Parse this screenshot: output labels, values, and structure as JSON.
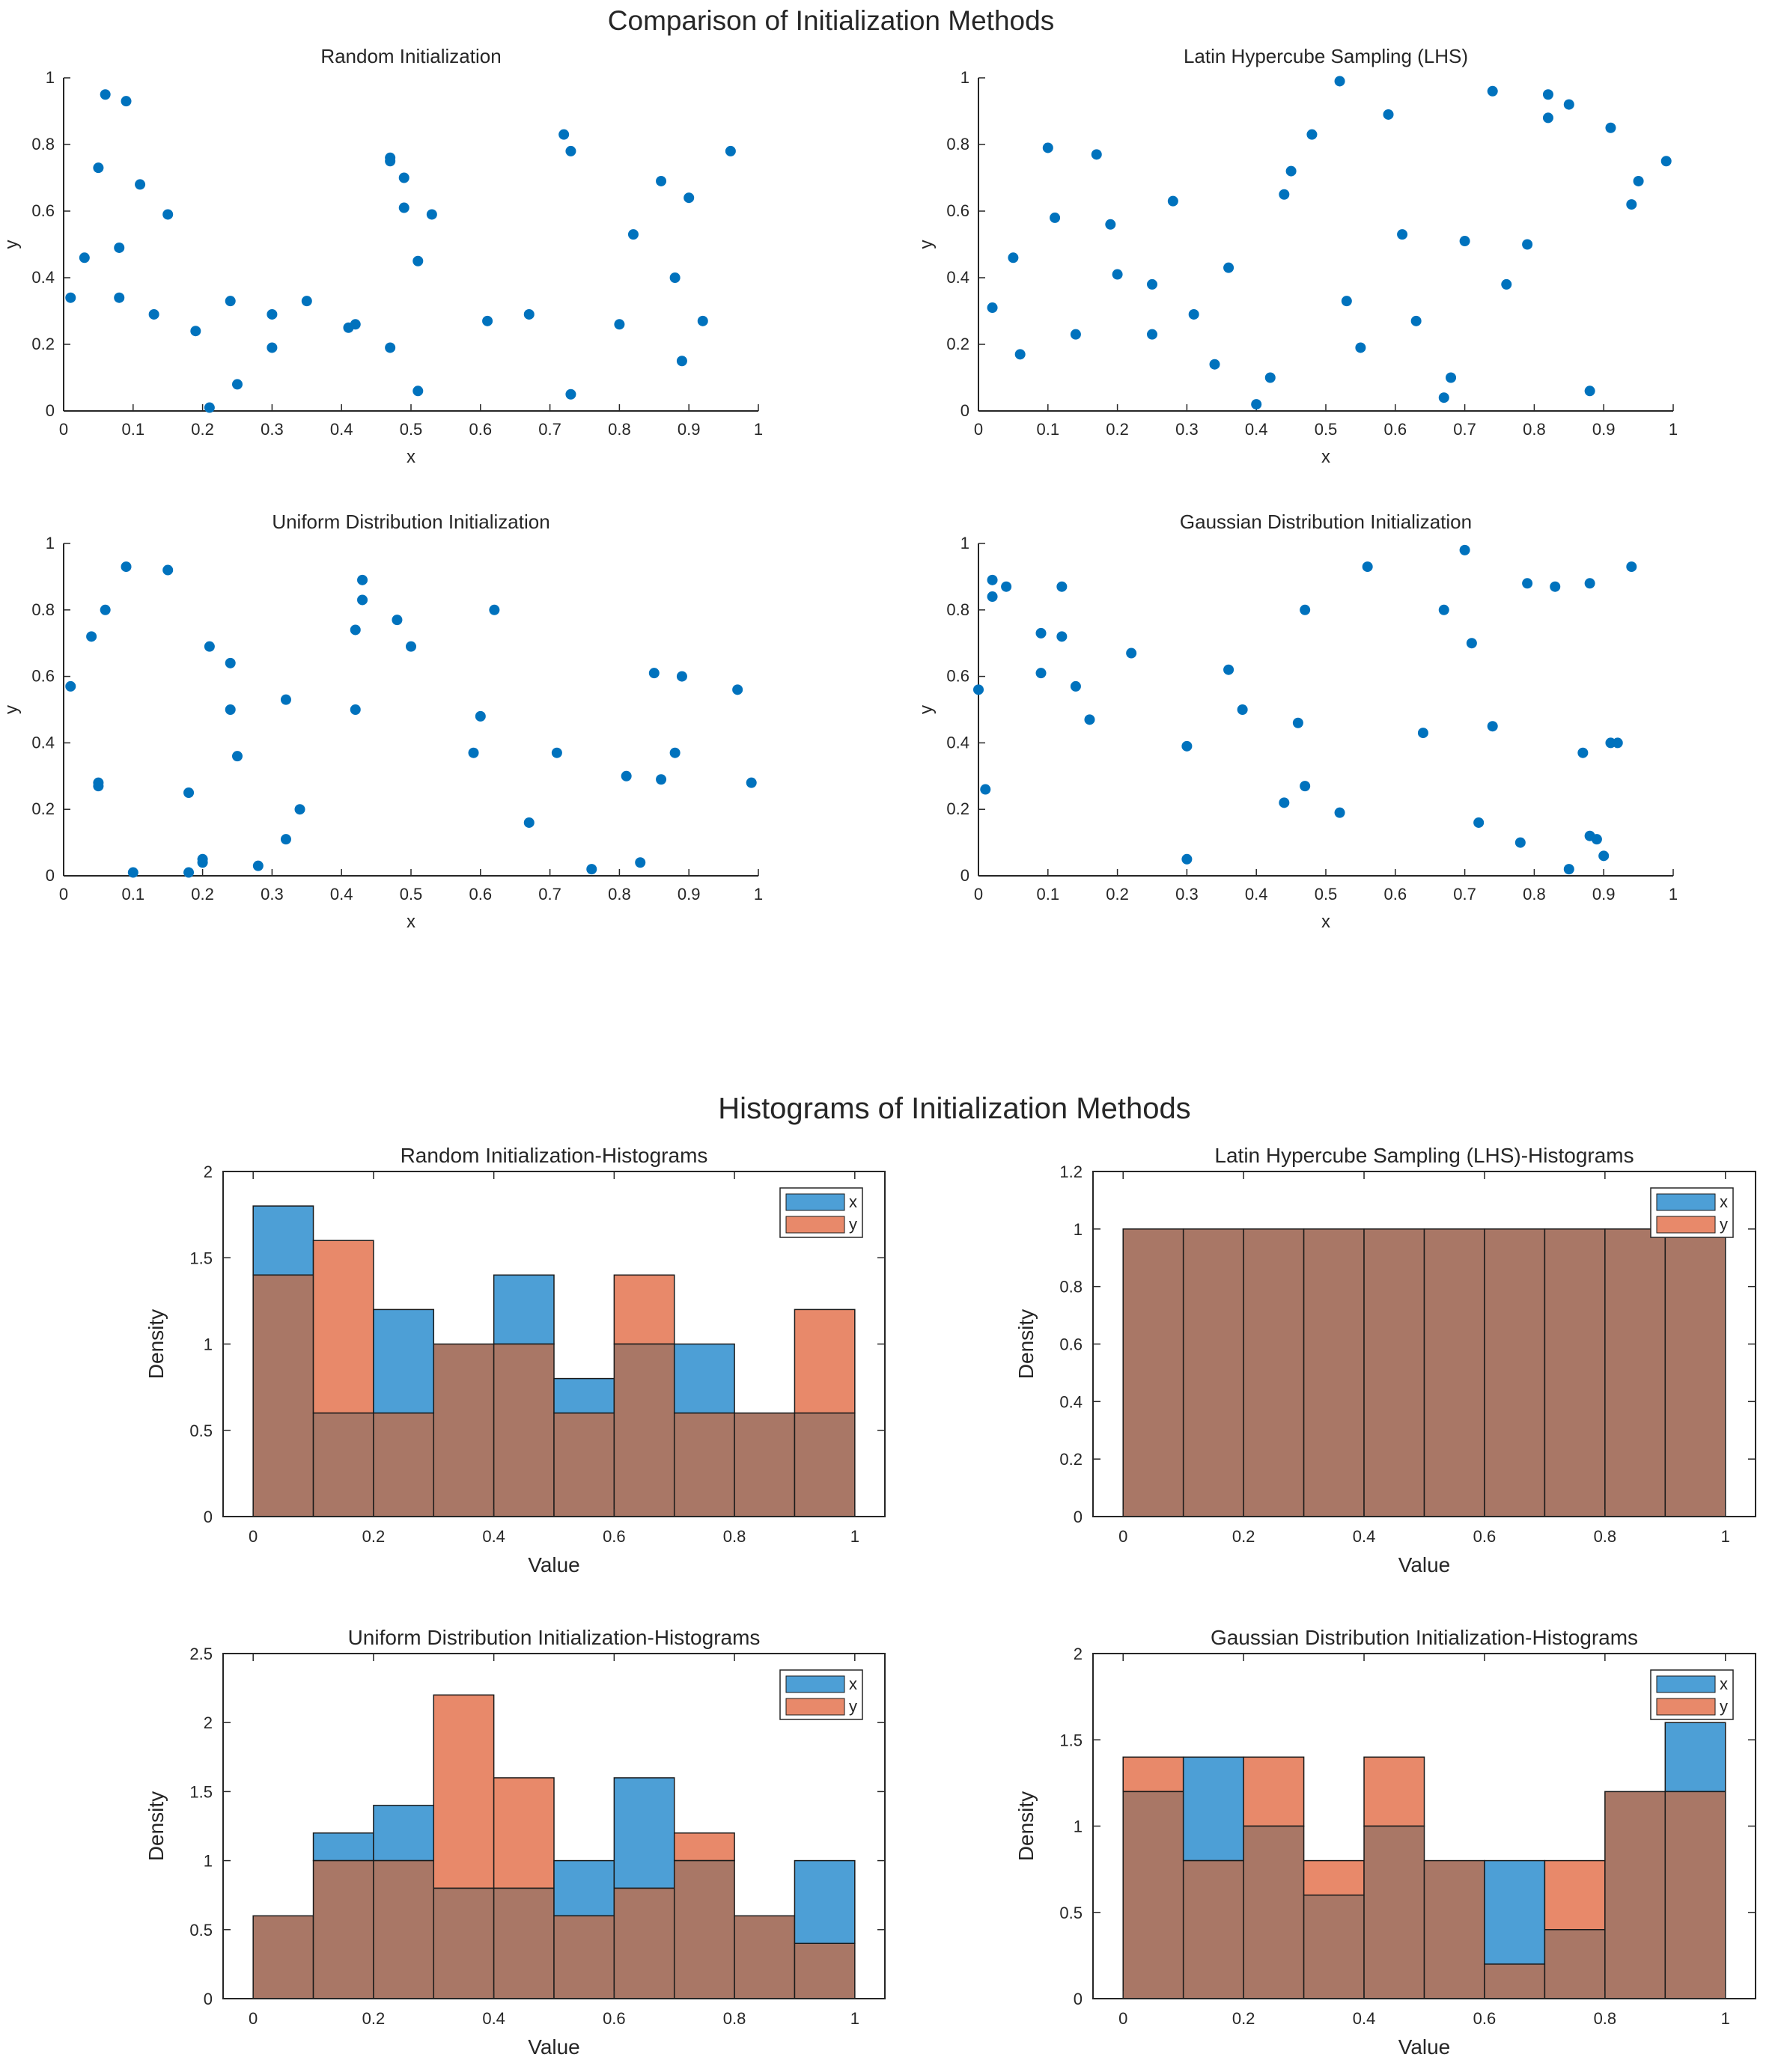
{
  "scatter_figure": {
    "title": "Comparison of Initialization Methods"
  },
  "hist_figure": {
    "title": "Histograms of Initialization Methods"
  },
  "colors": {
    "x": "#0072BD",
    "x_bar": "#4D9FD6",
    "y_bar": "#E8896A",
    "overlap": "#A97766",
    "point": "#0072BD"
  },
  "chart_data": [
    {
      "type": "scatter",
      "title": "Random Initialization",
      "xlabel": "x",
      "ylabel": "y",
      "xlim": [
        0,
        1
      ],
      "ylim": [
        0,
        1
      ],
      "xticks": [
        "0",
        "0.1",
        "0.2",
        "0.3",
        "0.4",
        "0.5",
        "0.6",
        "0.7",
        "0.8",
        "0.9",
        "1"
      ],
      "yticks": [
        "0",
        "0.2",
        "0.4",
        "0.6",
        "0.8",
        "1"
      ],
      "points": [
        [
          0.01,
          0.34
        ],
        [
          0.03,
          0.46
        ],
        [
          0.05,
          0.73
        ],
        [
          0.06,
          0.95
        ],
        [
          0.08,
          0.49
        ],
        [
          0.08,
          0.34
        ],
        [
          0.09,
          0.93
        ],
        [
          0.11,
          0.68
        ],
        [
          0.13,
          0.29
        ],
        [
          0.15,
          0.59
        ],
        [
          0.19,
          0.24
        ],
        [
          0.21,
          0.01
        ],
        [
          0.24,
          0.33
        ],
        [
          0.25,
          0.08
        ],
        [
          0.3,
          0.19
        ],
        [
          0.3,
          0.29
        ],
        [
          0.35,
          0.33
        ],
        [
          0.41,
          0.25
        ],
        [
          0.42,
          0.26
        ],
        [
          0.47,
          0.76
        ],
        [
          0.47,
          0.75
        ],
        [
          0.47,
          0.19
        ],
        [
          0.49,
          0.7
        ],
        [
          0.49,
          0.61
        ],
        [
          0.51,
          0.45
        ],
        [
          0.51,
          0.06
        ],
        [
          0.53,
          0.59
        ],
        [
          0.61,
          0.27
        ],
        [
          0.67,
          0.29
        ],
        [
          0.72,
          0.83
        ],
        [
          0.73,
          0.78
        ],
        [
          0.73,
          0.05
        ],
        [
          0.8,
          0.26
        ],
        [
          0.82,
          0.53
        ],
        [
          0.86,
          0.69
        ],
        [
          0.88,
          0.4
        ],
        [
          0.89,
          0.15
        ],
        [
          0.9,
          0.64
        ],
        [
          0.92,
          0.27
        ],
        [
          0.96,
          0.78
        ]
      ]
    },
    {
      "type": "scatter",
      "title": "Latin Hypercube Sampling (LHS)",
      "xlabel": "x",
      "ylabel": "y",
      "xlim": [
        0,
        1
      ],
      "ylim": [
        0,
        1
      ],
      "xticks": [
        "0",
        "0.1",
        "0.2",
        "0.3",
        "0.4",
        "0.5",
        "0.6",
        "0.7",
        "0.8",
        "0.9",
        "1"
      ],
      "yticks": [
        "0",
        "0.2",
        "0.4",
        "0.6",
        "0.8",
        "1"
      ],
      "points": [
        [
          0.02,
          0.31
        ],
        [
          0.05,
          0.46
        ],
        [
          0.06,
          0.17
        ],
        [
          0.1,
          0.79
        ],
        [
          0.11,
          0.58
        ],
        [
          0.14,
          0.23
        ],
        [
          0.17,
          0.77
        ],
        [
          0.19,
          0.56
        ],
        [
          0.2,
          0.41
        ],
        [
          0.25,
          0.38
        ],
        [
          0.25,
          0.23
        ],
        [
          0.28,
          0.63
        ],
        [
          0.31,
          0.29
        ],
        [
          0.34,
          0.14
        ],
        [
          0.36,
          0.43
        ],
        [
          0.4,
          0.02
        ],
        [
          0.42,
          0.1
        ],
        [
          0.44,
          0.65
        ],
        [
          0.45,
          0.72
        ],
        [
          0.48,
          0.83
        ],
        [
          0.52,
          0.99
        ],
        [
          0.53,
          0.33
        ],
        [
          0.55,
          0.19
        ],
        [
          0.59,
          0.89
        ],
        [
          0.61,
          0.53
        ],
        [
          0.63,
          0.27
        ],
        [
          0.67,
          0.04
        ],
        [
          0.68,
          0.1
        ],
        [
          0.7,
          0.51
        ],
        [
          0.74,
          0.96
        ],
        [
          0.76,
          0.38
        ],
        [
          0.79,
          0.5
        ],
        [
          0.82,
          0.95
        ],
        [
          0.82,
          0.88
        ],
        [
          0.85,
          0.92
        ],
        [
          0.88,
          0.06
        ],
        [
          0.91,
          0.85
        ],
        [
          0.94,
          0.62
        ],
        [
          0.95,
          0.69
        ],
        [
          0.99,
          0.75
        ]
      ]
    },
    {
      "type": "scatter",
      "title": "Uniform Distribution Initialization",
      "xlabel": "x",
      "ylabel": "y",
      "xlim": [
        0,
        1
      ],
      "ylim": [
        0,
        1
      ],
      "xticks": [
        "0",
        "0.1",
        "0.2",
        "0.3",
        "0.4",
        "0.5",
        "0.6",
        "0.7",
        "0.8",
        "0.9",
        "1"
      ],
      "yticks": [
        "0",
        "0.2",
        "0.4",
        "0.6",
        "0.8",
        "1"
      ],
      "points": [
        [
          0.01,
          0.57
        ],
        [
          0.04,
          0.72
        ],
        [
          0.05,
          0.28
        ],
        [
          0.05,
          0.27
        ],
        [
          0.06,
          0.8
        ],
        [
          0.09,
          0.93
        ],
        [
          0.1,
          0.01
        ],
        [
          0.15,
          0.92
        ],
        [
          0.18,
          0.25
        ],
        [
          0.18,
          0.01
        ],
        [
          0.2,
          0.05
        ],
        [
          0.2,
          0.04
        ],
        [
          0.21,
          0.69
        ],
        [
          0.24,
          0.64
        ],
        [
          0.24,
          0.5
        ],
        [
          0.25,
          0.36
        ],
        [
          0.28,
          0.03
        ],
        [
          0.32,
          0.11
        ],
        [
          0.32,
          0.53
        ],
        [
          0.34,
          0.2
        ],
        [
          0.42,
          0.74
        ],
        [
          0.42,
          0.5
        ],
        [
          0.43,
          0.83
        ],
        [
          0.43,
          0.89
        ],
        [
          0.48,
          0.77
        ],
        [
          0.5,
          0.69
        ],
        [
          0.59,
          0.37
        ],
        [
          0.6,
          0.48
        ],
        [
          0.62,
          0.8
        ],
        [
          0.67,
          0.16
        ],
        [
          0.71,
          0.37
        ],
        [
          0.76,
          0.02
        ],
        [
          0.81,
          0.3
        ],
        [
          0.83,
          0.04
        ],
        [
          0.85,
          0.61
        ],
        [
          0.86,
          0.29
        ],
        [
          0.88,
          0.37
        ],
        [
          0.89,
          0.6
        ],
        [
          0.97,
          0.56
        ],
        [
          0.99,
          0.28
        ]
      ]
    },
    {
      "type": "scatter",
      "title": "Gaussian Distribution Initialization",
      "xlabel": "x",
      "ylabel": "y",
      "xlim": [
        0,
        1
      ],
      "ylim": [
        0,
        1
      ],
      "xticks": [
        "0",
        "0.1",
        "0.2",
        "0.3",
        "0.4",
        "0.5",
        "0.6",
        "0.7",
        "0.8",
        "0.9",
        "1"
      ],
      "yticks": [
        "0",
        "0.2",
        "0.4",
        "0.6",
        "0.8",
        "1"
      ],
      "points": [
        [
          0.0,
          0.56
        ],
        [
          0.01,
          0.26
        ],
        [
          0.02,
          0.84
        ],
        [
          0.02,
          0.89
        ],
        [
          0.04,
          0.87
        ],
        [
          0.09,
          0.73
        ],
        [
          0.09,
          0.61
        ],
        [
          0.12,
          0.72
        ],
        [
          0.12,
          0.87
        ],
        [
          0.14,
          0.57
        ],
        [
          0.16,
          0.47
        ],
        [
          0.22,
          0.67
        ],
        [
          0.3,
          0.39
        ],
        [
          0.3,
          0.05
        ],
        [
          0.36,
          0.62
        ],
        [
          0.38,
          0.5
        ],
        [
          0.44,
          0.22
        ],
        [
          0.46,
          0.46
        ],
        [
          0.47,
          0.27
        ],
        [
          0.47,
          0.8
        ],
        [
          0.52,
          0.19
        ],
        [
          0.56,
          0.93
        ],
        [
          0.64,
          0.43
        ],
        [
          0.67,
          0.8
        ],
        [
          0.7,
          0.98
        ],
        [
          0.71,
          0.7
        ],
        [
          0.72,
          0.16
        ],
        [
          0.74,
          0.45
        ],
        [
          0.78,
          0.1
        ],
        [
          0.79,
          0.88
        ],
        [
          0.83,
          0.87
        ],
        [
          0.85,
          0.02
        ],
        [
          0.87,
          0.37
        ],
        [
          0.88,
          0.88
        ],
        [
          0.88,
          0.12
        ],
        [
          0.89,
          0.11
        ],
        [
          0.9,
          0.06
        ],
        [
          0.91,
          0.4
        ],
        [
          0.92,
          0.4
        ],
        [
          0.94,
          0.93
        ]
      ]
    },
    {
      "type": "bar",
      "title": "Random Initialization-Histograms",
      "xlabel": "Value",
      "ylabel": "Density",
      "xlim": [
        -0.05,
        1.05
      ],
      "ylim": [
        0,
        2
      ],
      "xticks": [
        "0",
        "0.2",
        "0.4",
        "0.6",
        "0.8",
        "1"
      ],
      "yticks": [
        "0",
        "0.5",
        "1",
        "1.5",
        "2"
      ],
      "bin_edges": [
        0,
        0.1,
        0.2,
        0.3,
        0.4,
        0.5,
        0.6,
        0.7,
        0.8,
        0.9,
        1.0
      ],
      "legend": "top-right",
      "series": [
        {
          "name": "x",
          "values": [
            1.8,
            0.6,
            1.2,
            1.0,
            1.4,
            0.8,
            1.0,
            1.0,
            0.6,
            0.6
          ]
        },
        {
          "name": "y",
          "values": [
            1.4,
            1.6,
            0.6,
            1.0,
            1.0,
            0.6,
            1.4,
            0.6,
            0.6,
            1.2
          ]
        }
      ]
    },
    {
      "type": "bar",
      "title": "Latin Hypercube Sampling (LHS)-Histograms",
      "xlabel": "Value",
      "ylabel": "Density",
      "xlim": [
        -0.05,
        1.05
      ],
      "ylim": [
        0,
        1.2
      ],
      "xticks": [
        "0",
        "0.2",
        "0.4",
        "0.6",
        "0.8",
        "1"
      ],
      "yticks": [
        "0",
        "0.2",
        "0.4",
        "0.6",
        "0.8",
        "1",
        "1.2"
      ],
      "bin_edges": [
        0,
        0.1,
        0.2,
        0.3,
        0.4,
        0.5,
        0.6,
        0.7,
        0.8,
        0.9,
        1.0
      ],
      "legend": "top-right",
      "series": [
        {
          "name": "x",
          "values": [
            1,
            1,
            1,
            1,
            1,
            1,
            1,
            1,
            1,
            1
          ]
        },
        {
          "name": "y",
          "values": [
            1,
            1,
            1,
            1,
            1,
            1,
            1,
            1,
            1,
            1
          ]
        }
      ]
    },
    {
      "type": "bar",
      "title": "Uniform Distribution Initialization-Histograms",
      "xlabel": "Value",
      "ylabel": "Density",
      "xlim": [
        -0.05,
        1.05
      ],
      "ylim": [
        0,
        2.5
      ],
      "xticks": [
        "0",
        "0.2",
        "0.4",
        "0.6",
        "0.8",
        "1"
      ],
      "yticks": [
        "0",
        "0.5",
        "1",
        "1.5",
        "2",
        "2.5"
      ],
      "bin_edges": [
        0,
        0.1,
        0.2,
        0.3,
        0.4,
        0.5,
        0.6,
        0.7,
        0.8,
        0.9,
        1.0
      ],
      "legend": "top-right",
      "series": [
        {
          "name": "x",
          "values": [
            0.6,
            1.2,
            1.4,
            0.8,
            0.8,
            1.0,
            1.6,
            1.0,
            0.6,
            1.0
          ]
        },
        {
          "name": "y",
          "values": [
            0.6,
            1.0,
            1.0,
            2.2,
            1.6,
            0.6,
            0.8,
            1.2,
            0.6,
            0.4
          ]
        }
      ]
    },
    {
      "type": "bar",
      "title": "Gaussian Distribution Initialization-Histograms",
      "xlabel": "Value",
      "ylabel": "Density",
      "xlim": [
        -0.05,
        1.05
      ],
      "ylim": [
        0,
        2
      ],
      "xticks": [
        "0",
        "0.2",
        "0.4",
        "0.6",
        "0.8",
        "1"
      ],
      "yticks": [
        "0",
        "0.5",
        "1",
        "1.5",
        "2"
      ],
      "bin_edges": [
        0,
        0.1,
        0.2,
        0.3,
        0.4,
        0.5,
        0.6,
        0.7,
        0.8,
        0.9,
        1.0
      ],
      "legend": "top-right",
      "series": [
        {
          "name": "x",
          "values": [
            1.2,
            1.4,
            1.0,
            0.6,
            1.0,
            0.8,
            0.8,
            0.4,
            1.2,
            1.6
          ]
        },
        {
          "name": "y",
          "values": [
            1.4,
            0.8,
            1.4,
            0.8,
            1.4,
            0.8,
            0.2,
            0.8,
            1.2,
            1.2
          ]
        }
      ]
    }
  ]
}
